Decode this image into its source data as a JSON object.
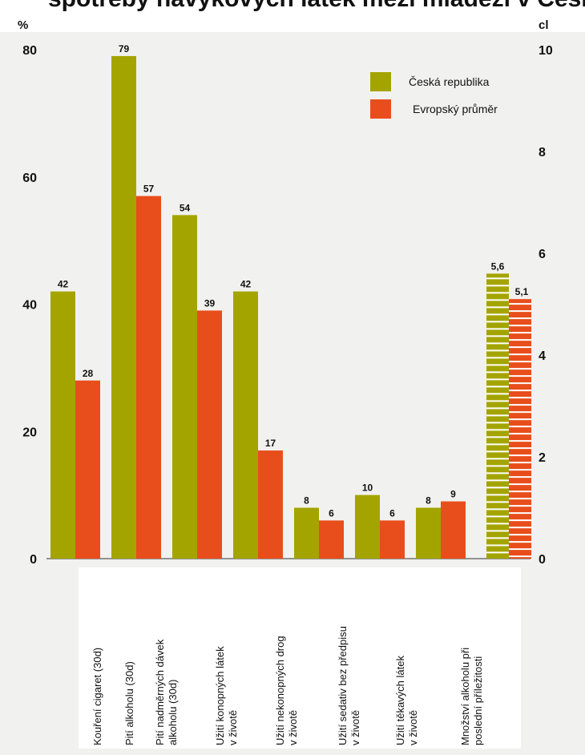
{
  "title_partial": "spotřeby návykových látek mezi mládeží v České republice a v Evropě (%)",
  "chart_data": {
    "type": "bar",
    "categories": [
      "Kouření cigaret (30d)",
      "Pití alkoholu (30d)",
      "Pití nadměrných dávek\nalkoholu (30d)",
      "Užití konopných látek\nv životě",
      "Užití nekonopných drog\nv životě",
      "Užití sedativ bez předpisu\nv životě",
      "Užití těkavých látek\nv životě",
      "Množství alkoholu při\nposlední příležitosti"
    ],
    "series": [
      {
        "name": "Česká republika",
        "color": "#a4a400",
        "values": [
          42,
          79,
          54,
          42,
          8,
          10,
          8,
          null
        ],
        "value_labels": [
          "42",
          "79",
          "54",
          "42",
          "8",
          "10",
          "8",
          ""
        ]
      },
      {
        "name": "Evropský průměr",
        "color": "#e84e1b",
        "values": [
          28,
          57,
          39,
          17,
          6,
          6,
          9,
          null
        ],
        "value_labels": [
          "28",
          "57",
          "39",
          "17",
          "6",
          "6",
          "9",
          ""
        ]
      }
    ],
    "secondary": {
      "category": "Množství alkoholu při\nposlední příležitosti",
      "unit": "cl",
      "values": [
        5.6,
        5.1
      ],
      "value_labels": [
        "5,6",
        "5,1"
      ],
      "style": "striped"
    },
    "y_left": {
      "label": "%",
      "ticks": [
        0,
        20,
        40,
        60,
        80
      ],
      "ylim": [
        0,
        80
      ]
    },
    "y_right": {
      "label": "cl",
      "ticks": [
        0,
        2,
        4,
        6,
        8,
        10
      ],
      "ylim": [
        0,
        10
      ]
    },
    "legend": {
      "position": "top-right",
      "items": [
        "Česká republika",
        "Evropský průměr"
      ]
    },
    "grid": false
  }
}
